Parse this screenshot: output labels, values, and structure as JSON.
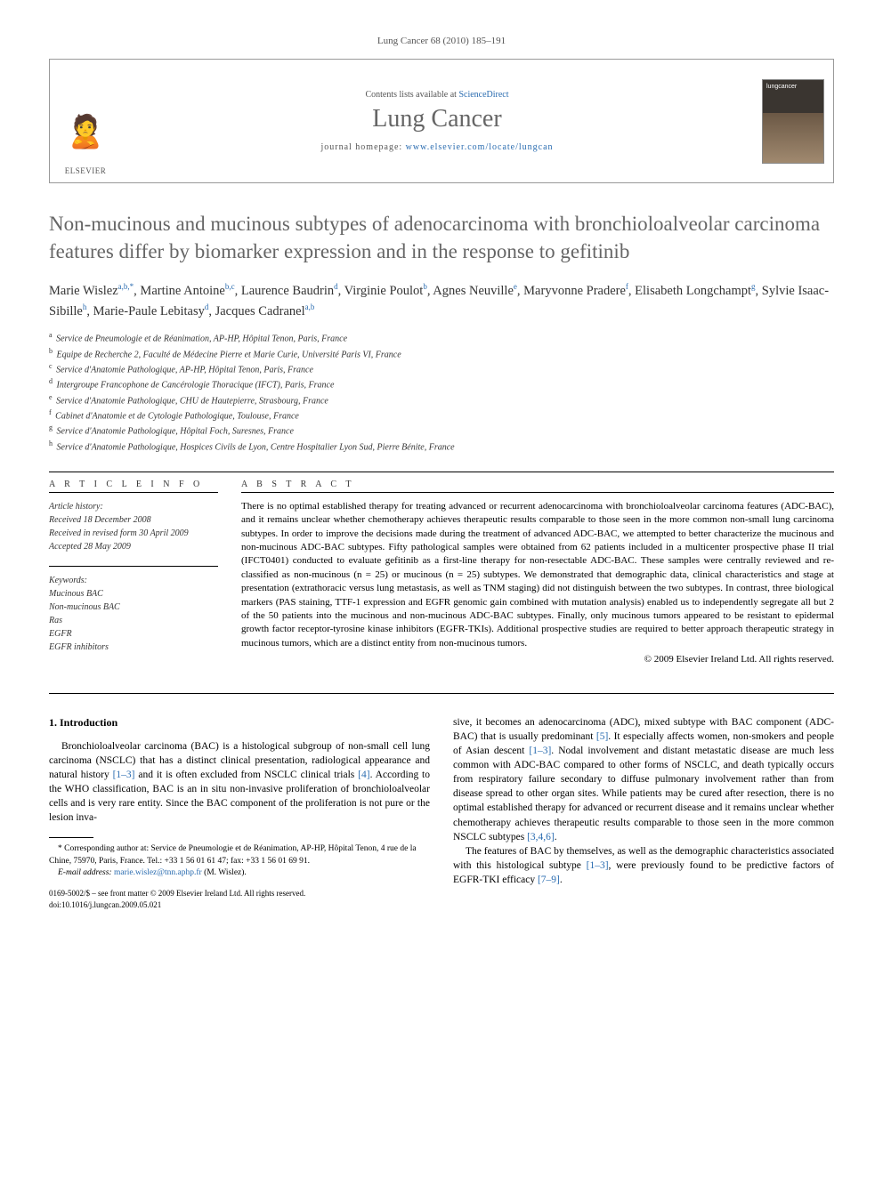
{
  "header": {
    "citation": "Lung Cancer 68 (2010) 185–191",
    "contents_prefix": "Contents lists available at ",
    "contents_link": "ScienceDirect",
    "journal_name": "Lung Cancer",
    "homepage_prefix": "journal homepage: ",
    "homepage_url": "www.elsevier.com/locate/lungcan",
    "publisher_name": "ELSEVIER"
  },
  "article": {
    "title": "Non-mucinous and mucinous subtypes of adenocarcinoma with bronchioloalveolar carcinoma features differ by biomarker expression and in the response to gefitinib"
  },
  "authors_html": "Marie Wislez<sup>a,b,*</sup>, Martine Antoine<sup>b,c</sup>, Laurence Baudrin<sup>d</sup>, Virginie Poulot<sup>b</sup>, Agnes Neuville<sup>e</sup>, Maryvonne Pradere<sup>f</sup>, Elisabeth Longchampt<sup>g</sup>, Sylvie Isaac-Sibille<sup>h</sup>, Marie-Paule Lebitasy<sup>d</sup>, Jacques Cadranel<sup>a,b</sup>",
  "affiliations": [
    {
      "label": "a",
      "text": "Service de Pneumologie et de Réanimation, AP-HP, Hôpital Tenon, Paris, France"
    },
    {
      "label": "b",
      "text": "Equipe de Recherche 2, Faculté de Médecine Pierre et Marie Curie, Université Paris VI, France"
    },
    {
      "label": "c",
      "text": "Service d'Anatomie Pathologique, AP-HP, Hôpital Tenon, Paris, France"
    },
    {
      "label": "d",
      "text": "Intergroupe Francophone de Cancérologie Thoracique (IFCT), Paris, France"
    },
    {
      "label": "e",
      "text": "Service d'Anatomie Pathologique, CHU de Hautepierre, Strasbourg, France"
    },
    {
      "label": "f",
      "text": "Cabinet d'Anatomie et de Cytologie Pathologique, Toulouse, France"
    },
    {
      "label": "g",
      "text": "Service d'Anatomie Pathologique, Hôpital Foch, Suresnes, France"
    },
    {
      "label": "h",
      "text": "Service d'Anatomie Pathologique, Hospices Civils de Lyon, Centre Hospitalier Lyon Sud, Pierre Bénite, France"
    }
  ],
  "info": {
    "heading_info": "A R T I C L E   I N F O",
    "history_label": "Article history:",
    "history": [
      "Received 18 December 2008",
      "Received in revised form 30 April 2009",
      "Accepted 28 May 2009"
    ],
    "keywords_label": "Keywords:",
    "keywords": [
      "Mucinous BAC",
      "Non-mucinous BAC",
      "Ras",
      "EGFR",
      "EGFR inhibitors"
    ]
  },
  "abstract": {
    "heading": "A B S T R A C T",
    "text": "There is no optimal established therapy for treating advanced or recurrent adenocarcinoma with bronchioloalveolar carcinoma features (ADC-BAC), and it remains unclear whether chemotherapy achieves therapeutic results comparable to those seen in the more common non-small lung carcinoma subtypes. In order to improve the decisions made during the treatment of advanced ADC-BAC, we attempted to better characterize the mucinous and non-mucinous ADC-BAC subtypes. Fifty pathological samples were obtained from 62 patients included in a multicenter prospective phase II trial (IFCT0401) conducted to evaluate gefitinib as a first-line therapy for non-resectable ADC-BAC. These samples were centrally reviewed and re-classified as non-mucinous (n = 25) or mucinous (n = 25) subtypes. We demonstrated that demographic data, clinical characteristics and stage at presentation (extrathoracic versus lung metastasis, as well as TNM staging) did not distinguish between the two subtypes. In contrast, three biological markers (PAS staining, TTF-1 expression and EGFR genomic gain combined with mutation analysis) enabled us to independently segregate all but 2 of the 50 patients into the mucinous and non-mucinous ADC-BAC subtypes. Finally, only mucinous tumors appeared to be resistant to epidermal growth factor receptor-tyrosine kinase inhibitors (EGFR-TKIs). Additional prospective studies are required to better approach therapeutic strategy in mucinous tumors, which are a distinct entity from non-mucinous tumors.",
    "copyright": "© 2009 Elsevier Ireland Ltd. All rights reserved."
  },
  "body": {
    "section1_heading": "1.  Introduction",
    "p1": "Bronchioloalveolar carcinoma (BAC) is a histological subgroup of non-small cell lung carcinoma (NSCLC) that has a distinct clinical presentation, radiological appearance and natural history [1–3] and it is often excluded from NSCLC clinical trials [4]. According to the WHO classification, BAC is an in situ non-invasive proliferation of bronchioloalveolar cells and is very rare entity. Since the BAC component of the proliferation is not pure or the lesion inva",
    "p2": "sive, it becomes an adenocarcinoma (ADC), mixed subtype with BAC component (ADC-BAC) that is usually predominant [5]. It especially affects women, non-smokers and people of Asian descent [1–3]. Nodal involvement and distant metastatic disease are much less common with ADC-BAC compared to other forms of NSCLC, and death typically occurs from respiratory failure secondary to diffuse pulmonary involvement rather than from disease spread to other organ sites. While patients may be cured after resection, there is no optimal established therapy for advanced or recurrent disease and it remains unclear whether chemotherapy achieves therapeutic results comparable to those seen in the more common NSCLC subtypes [3,4,6].",
    "p3": "The features of BAC by themselves, as well as the demographic characteristics associated with this histological subtype [1–3], were previously found to be predictive factors of EGFR-TKI efficacy [7–9]."
  },
  "footnotes": {
    "corresponding": "* Corresponding author at: Service de Pneumologie et de Réanimation, AP-HP, Hôpital Tenon, 4 rue de la Chine, 75970, Paris, France. Tel.: +33 1 56 01 61 47; fax: +33 1 56 01 69 91.",
    "email_label": "E-mail address: ",
    "email": "marie.wislez@tnn.aphp.fr",
    "email_person": " (M. Wislez)."
  },
  "doi": {
    "line1": "0169-5002/$ – see front matter © 2009 Elsevier Ireland Ltd. All rights reserved.",
    "line2": "doi:10.1016/j.lungcan.2009.05.021"
  },
  "colors": {
    "link_color": "#2a6cb0",
    "title_color": "#666666",
    "elsevier_orange": "#e67817"
  }
}
